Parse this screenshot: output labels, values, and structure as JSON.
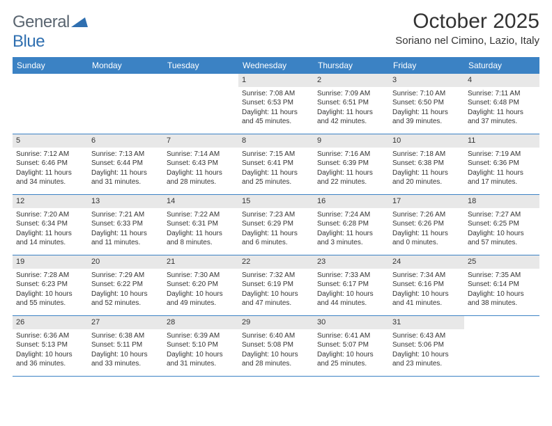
{
  "logo": {
    "text1": "General",
    "text2": "Blue"
  },
  "title": "October 2025",
  "location": "Soriano nel Cimino, Lazio, Italy",
  "header_bg": "#3b82c4",
  "daynum_bg": "#e8e8e8",
  "border_color": "#3b82c4",
  "dow": [
    "Sunday",
    "Monday",
    "Tuesday",
    "Wednesday",
    "Thursday",
    "Friday",
    "Saturday"
  ],
  "weeks": [
    [
      {
        "n": "",
        "sr": "",
        "ss": "",
        "dl": ""
      },
      {
        "n": "",
        "sr": "",
        "ss": "",
        "dl": ""
      },
      {
        "n": "",
        "sr": "",
        "ss": "",
        "dl": ""
      },
      {
        "n": "1",
        "sr": "Sunrise: 7:08 AM",
        "ss": "Sunset: 6:53 PM",
        "dl": "Daylight: 11 hours and 45 minutes."
      },
      {
        "n": "2",
        "sr": "Sunrise: 7:09 AM",
        "ss": "Sunset: 6:51 PM",
        "dl": "Daylight: 11 hours and 42 minutes."
      },
      {
        "n": "3",
        "sr": "Sunrise: 7:10 AM",
        "ss": "Sunset: 6:50 PM",
        "dl": "Daylight: 11 hours and 39 minutes."
      },
      {
        "n": "4",
        "sr": "Sunrise: 7:11 AM",
        "ss": "Sunset: 6:48 PM",
        "dl": "Daylight: 11 hours and 37 minutes."
      }
    ],
    [
      {
        "n": "5",
        "sr": "Sunrise: 7:12 AM",
        "ss": "Sunset: 6:46 PM",
        "dl": "Daylight: 11 hours and 34 minutes."
      },
      {
        "n": "6",
        "sr": "Sunrise: 7:13 AM",
        "ss": "Sunset: 6:44 PM",
        "dl": "Daylight: 11 hours and 31 minutes."
      },
      {
        "n": "7",
        "sr": "Sunrise: 7:14 AM",
        "ss": "Sunset: 6:43 PM",
        "dl": "Daylight: 11 hours and 28 minutes."
      },
      {
        "n": "8",
        "sr": "Sunrise: 7:15 AM",
        "ss": "Sunset: 6:41 PM",
        "dl": "Daylight: 11 hours and 25 minutes."
      },
      {
        "n": "9",
        "sr": "Sunrise: 7:16 AM",
        "ss": "Sunset: 6:39 PM",
        "dl": "Daylight: 11 hours and 22 minutes."
      },
      {
        "n": "10",
        "sr": "Sunrise: 7:18 AM",
        "ss": "Sunset: 6:38 PM",
        "dl": "Daylight: 11 hours and 20 minutes."
      },
      {
        "n": "11",
        "sr": "Sunrise: 7:19 AM",
        "ss": "Sunset: 6:36 PM",
        "dl": "Daylight: 11 hours and 17 minutes."
      }
    ],
    [
      {
        "n": "12",
        "sr": "Sunrise: 7:20 AM",
        "ss": "Sunset: 6:34 PM",
        "dl": "Daylight: 11 hours and 14 minutes."
      },
      {
        "n": "13",
        "sr": "Sunrise: 7:21 AM",
        "ss": "Sunset: 6:33 PM",
        "dl": "Daylight: 11 hours and 11 minutes."
      },
      {
        "n": "14",
        "sr": "Sunrise: 7:22 AM",
        "ss": "Sunset: 6:31 PM",
        "dl": "Daylight: 11 hours and 8 minutes."
      },
      {
        "n": "15",
        "sr": "Sunrise: 7:23 AM",
        "ss": "Sunset: 6:29 PM",
        "dl": "Daylight: 11 hours and 6 minutes."
      },
      {
        "n": "16",
        "sr": "Sunrise: 7:24 AM",
        "ss": "Sunset: 6:28 PM",
        "dl": "Daylight: 11 hours and 3 minutes."
      },
      {
        "n": "17",
        "sr": "Sunrise: 7:26 AM",
        "ss": "Sunset: 6:26 PM",
        "dl": "Daylight: 11 hours and 0 minutes."
      },
      {
        "n": "18",
        "sr": "Sunrise: 7:27 AM",
        "ss": "Sunset: 6:25 PM",
        "dl": "Daylight: 10 hours and 57 minutes."
      }
    ],
    [
      {
        "n": "19",
        "sr": "Sunrise: 7:28 AM",
        "ss": "Sunset: 6:23 PM",
        "dl": "Daylight: 10 hours and 55 minutes."
      },
      {
        "n": "20",
        "sr": "Sunrise: 7:29 AM",
        "ss": "Sunset: 6:22 PM",
        "dl": "Daylight: 10 hours and 52 minutes."
      },
      {
        "n": "21",
        "sr": "Sunrise: 7:30 AM",
        "ss": "Sunset: 6:20 PM",
        "dl": "Daylight: 10 hours and 49 minutes."
      },
      {
        "n": "22",
        "sr": "Sunrise: 7:32 AM",
        "ss": "Sunset: 6:19 PM",
        "dl": "Daylight: 10 hours and 47 minutes."
      },
      {
        "n": "23",
        "sr": "Sunrise: 7:33 AM",
        "ss": "Sunset: 6:17 PM",
        "dl": "Daylight: 10 hours and 44 minutes."
      },
      {
        "n": "24",
        "sr": "Sunrise: 7:34 AM",
        "ss": "Sunset: 6:16 PM",
        "dl": "Daylight: 10 hours and 41 minutes."
      },
      {
        "n": "25",
        "sr": "Sunrise: 7:35 AM",
        "ss": "Sunset: 6:14 PM",
        "dl": "Daylight: 10 hours and 38 minutes."
      }
    ],
    [
      {
        "n": "26",
        "sr": "Sunrise: 6:36 AM",
        "ss": "Sunset: 5:13 PM",
        "dl": "Daylight: 10 hours and 36 minutes."
      },
      {
        "n": "27",
        "sr": "Sunrise: 6:38 AM",
        "ss": "Sunset: 5:11 PM",
        "dl": "Daylight: 10 hours and 33 minutes."
      },
      {
        "n": "28",
        "sr": "Sunrise: 6:39 AM",
        "ss": "Sunset: 5:10 PM",
        "dl": "Daylight: 10 hours and 31 minutes."
      },
      {
        "n": "29",
        "sr": "Sunrise: 6:40 AM",
        "ss": "Sunset: 5:08 PM",
        "dl": "Daylight: 10 hours and 28 minutes."
      },
      {
        "n": "30",
        "sr": "Sunrise: 6:41 AM",
        "ss": "Sunset: 5:07 PM",
        "dl": "Daylight: 10 hours and 25 minutes."
      },
      {
        "n": "31",
        "sr": "Sunrise: 6:43 AM",
        "ss": "Sunset: 5:06 PM",
        "dl": "Daylight: 10 hours and 23 minutes."
      },
      {
        "n": "",
        "sr": "",
        "ss": "",
        "dl": ""
      }
    ]
  ]
}
